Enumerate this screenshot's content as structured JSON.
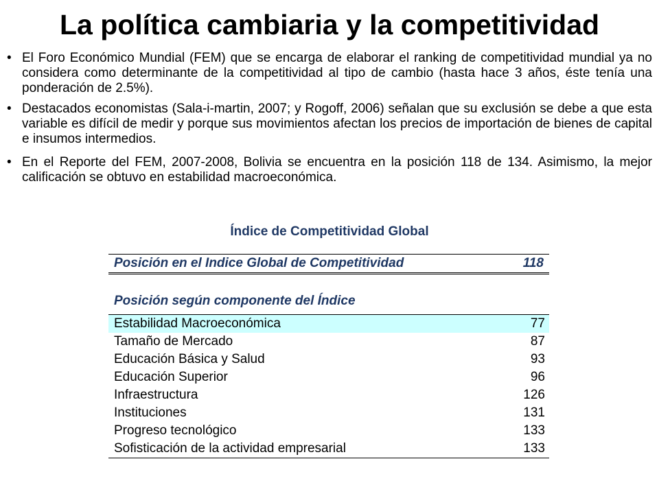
{
  "title": "La política cambiaria y la competitividad",
  "bullets": [
    "El Foro Económico Mundial (FEM) que se encarga de elaborar el ranking de competitividad mundial ya no considera como determinante de la competitividad al tipo de cambio (hasta hace 3 años, éste tenía una ponderación de 2.5%).",
    "Destacados economistas (Sala-i-martin, 2007; y Rogoff, 2006) señalan que su exclusión se debe a que esta variable es difícil de medir y porque sus movimientos afectan los precios de importación de bienes de capital e insumos intermedios.",
    "En el Reporte del FEM, 2007-2008, Bolivia se encuentra en la posición 118 de 134. Asimismo, la mejor calificación se obtuvo en estabilidad macroeconómica."
  ],
  "table": {
    "title": "Índice de Competitividad Global",
    "summary_label": "Posición en el Indice Global de Competitividad",
    "summary_value": "118",
    "section_label": "Posición según componente del Índice",
    "highlight_color": "#ccffff",
    "rows": [
      {
        "label": "Estabilidad Macroeconómica",
        "value": "77"
      },
      {
        "label": "Tamaño de Mercado",
        "value": "87"
      },
      {
        "label": "Educación Básica y Salud",
        "value": "93"
      },
      {
        "label": "Educación Superior",
        "value": "96"
      },
      {
        "label": "Infraestructura",
        "value": "126"
      },
      {
        "label": "Instituciones",
        "value": "131"
      },
      {
        "label": "Progreso tecnológico",
        "value": "133"
      },
      {
        "label": "Sofisticación de la actividad empresarial",
        "value": "133"
      }
    ]
  }
}
